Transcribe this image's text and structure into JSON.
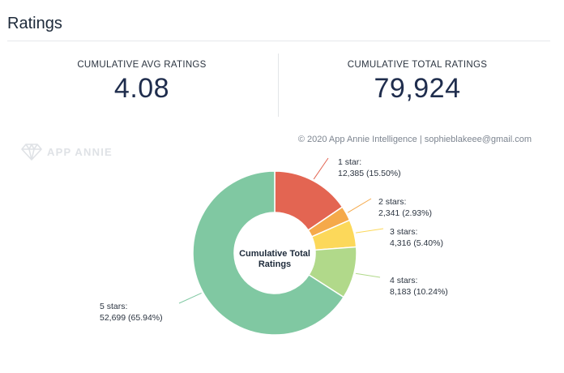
{
  "header": {
    "title": "Ratings"
  },
  "kpis": {
    "avg_label": "CUMULATIVE AVG RATINGS",
    "avg_value": "4.08",
    "total_label": "CUMULATIVE TOTAL RATINGS",
    "total_value": "79,924"
  },
  "copyright": "© 2020 App Annie Intelligence | sophieblakeee@gmail.com",
  "watermark": {
    "text": "APP ANNIE",
    "icon": "diamond-logo-icon"
  },
  "chart_data": {
    "type": "pie",
    "donut": true,
    "center_label": [
      "Cumulative Total",
      "Ratings"
    ],
    "slices": [
      {
        "name": "1 star:",
        "value": 12385,
        "value_text": "12,385 (15.50%)",
        "color": "#e36552"
      },
      {
        "name": "2 stars:",
        "value": 2341,
        "value_text": "2,341 (2.93%)",
        "color": "#f5a94a"
      },
      {
        "name": "3 stars:",
        "value": 4316,
        "value_text": "4,316 (5.40%)",
        "color": "#fcd85a"
      },
      {
        "name": "4 stars:",
        "value": 8183,
        "value_text": "8,183 (10.24%)",
        "color": "#b1d98a"
      },
      {
        "name": "5 stars:",
        "value": 52699,
        "value_text": "52,699 (65.94%)",
        "color": "#80c8a2"
      }
    ]
  }
}
